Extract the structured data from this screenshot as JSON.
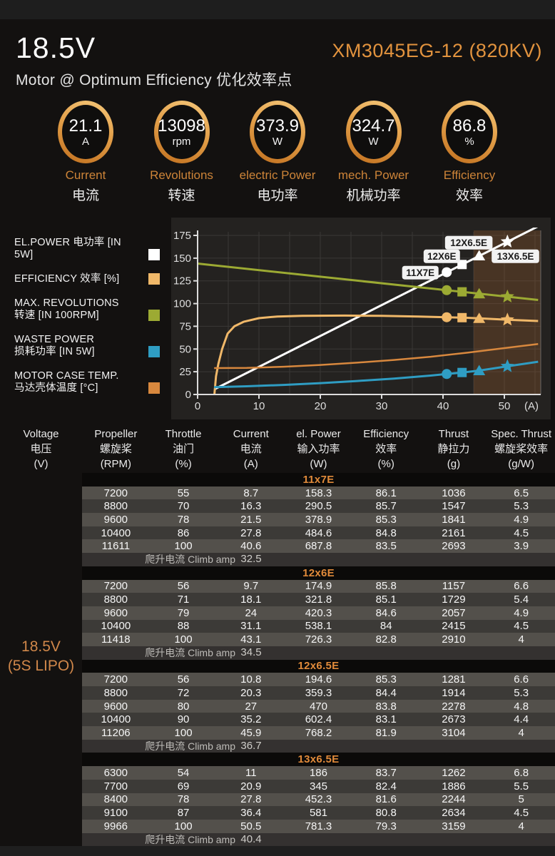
{
  "header": {
    "voltage": "18.5V",
    "model": "XM3045EG-12 (820KV)",
    "subtitle": "Motor @ Optimum Efficiency  优化效率点"
  },
  "gauges": [
    {
      "id": "current",
      "value": "21.1",
      "unit": "A",
      "label_en": "Current",
      "label_zh": "电流"
    },
    {
      "id": "revolutions",
      "value": "13098",
      "unit": "rpm",
      "label_en": "Revolutions",
      "label_zh": "转速"
    },
    {
      "id": "electric-power",
      "value": "373.9",
      "unit": "W",
      "label_en": "electric Power",
      "label_zh": "电功率"
    },
    {
      "id": "mech-power",
      "value": "324.7",
      "unit": "W",
      "label_en": "mech. Power",
      "label_zh": "机械功率"
    },
    {
      "id": "efficiency",
      "value": "86.8",
      "unit": "%",
      "label_en": "Efficiency",
      "label_zh": "效率"
    }
  ],
  "legend": [
    {
      "lines": [
        "EL.POWER 电功率 [IN 5W]"
      ],
      "color": "#ffffff"
    },
    {
      "lines": [
        "EFFICIENCY 效率 [%]"
      ],
      "color": "#f0b869"
    },
    {
      "lines": [
        "MAX. REVOLUTIONS",
        "转速 [IN 100RPM]"
      ],
      "color": "#9caa33"
    },
    {
      "lines": [
        "WASTE POWER",
        "损耗功率 [IN 5W]"
      ],
      "color": "#2f9dc3"
    },
    {
      "lines": [
        "MOTOR CASE TEMP.",
        "马达壳体温度 [°C]"
      ],
      "color": "#d8883e"
    }
  ],
  "chart_data": {
    "type": "line",
    "xlabel": "(A)",
    "xlim": [
      0,
      55.5
    ],
    "ylim": [
      0,
      180
    ],
    "x_ticks": [
      0,
      10,
      20,
      30,
      40,
      50
    ],
    "y_ticks": [
      0,
      25,
      50,
      75,
      100,
      125,
      150,
      175
    ],
    "grid": "on",
    "highlight_x_range": [
      45,
      55.5
    ],
    "highlight_color": "rgba(150,90,48,0.32)",
    "series": [
      {
        "key": "el_power",
        "name": "EL.POWER [IN 5W]",
        "color": "#ffffff",
        "width": 3,
        "points": [
          [
            2.8,
            6
          ],
          [
            55.5,
            185
          ]
        ]
      },
      {
        "key": "revolutions",
        "name": "MAX. REVOLUTIONS [IN 100RPM]",
        "color": "#9caa33",
        "width": 3,
        "points": [
          [
            0,
            144
          ],
          [
            55.5,
            104
          ]
        ]
      },
      {
        "key": "efficiency",
        "name": "EFFICIENCY [%]",
        "color": "#f0b869",
        "width": 3,
        "points": [
          [
            2.7,
            -3
          ],
          [
            3,
            20
          ],
          [
            3.4,
            34
          ],
          [
            4,
            50
          ],
          [
            4.9,
            67
          ],
          [
            6,
            75
          ],
          [
            7.5,
            80
          ],
          [
            10,
            84
          ],
          [
            13,
            85.8
          ],
          [
            17,
            86.5
          ],
          [
            24,
            86.8
          ],
          [
            30,
            86.5
          ],
          [
            36,
            85.8
          ],
          [
            40.6,
            85
          ],
          [
            43.1,
            84.5
          ],
          [
            45.9,
            83.8
          ],
          [
            50.5,
            82.2
          ],
          [
            55.5,
            80.8
          ]
        ]
      },
      {
        "key": "waste_power",
        "name": "WASTE POWER [IN 5W]",
        "color": "#2f9dc3",
        "width": 3,
        "points": [
          [
            2.7,
            8
          ],
          [
            8,
            9
          ],
          [
            14,
            10.5
          ],
          [
            20,
            12.5
          ],
          [
            26,
            14.8
          ],
          [
            32,
            17.5
          ],
          [
            38,
            20.8
          ],
          [
            40.6,
            22.5
          ],
          [
            43.1,
            24.2
          ],
          [
            45.9,
            26.3
          ],
          [
            50.5,
            31
          ],
          [
            55.5,
            36
          ]
        ]
      },
      {
        "key": "case_temp",
        "name": "MOTOR CASE TEMP. [°C]",
        "color": "#d8883e",
        "width": 2.5,
        "points": [
          [
            2.7,
            29
          ],
          [
            8,
            29.3
          ],
          [
            14,
            30.5
          ],
          [
            20,
            32.5
          ],
          [
            26,
            35
          ],
          [
            32,
            38
          ],
          [
            38,
            41.5
          ],
          [
            44,
            46
          ],
          [
            50,
            51
          ],
          [
            55.5,
            55.5
          ]
        ]
      }
    ],
    "markers": [
      {
        "prop": "11X7E",
        "shape": "circle",
        "pts": {
          "el_power": [
            40.6,
            134.5
          ],
          "revolutions": [
            40.6,
            114.7
          ],
          "efficiency": [
            40.6,
            85
          ],
          "waste_power": [
            40.6,
            22.5
          ]
        }
      },
      {
        "prop": "12X6E",
        "shape": "square",
        "pts": {
          "el_power": [
            43.1,
            143
          ],
          "revolutions": [
            43.1,
            112.9
          ],
          "efficiency": [
            43.1,
            84.5
          ],
          "waste_power": [
            43.1,
            24.2
          ]
        }
      },
      {
        "prop": "12X6.5E",
        "shape": "triangle",
        "pts": {
          "el_power": [
            45.9,
            152.6
          ],
          "revolutions": [
            45.9,
            110.9
          ],
          "efficiency": [
            45.9,
            83.8
          ],
          "waste_power": [
            45.9,
            26.3
          ]
        }
      },
      {
        "prop": "13X6.5E",
        "shape": "star",
        "pts": {
          "el_power": [
            50.5,
            168
          ],
          "revolutions": [
            50.5,
            107.6
          ],
          "efficiency": [
            50.5,
            82.2
          ],
          "waste_power": [
            50.5,
            31
          ]
        }
      }
    ],
    "marker_labels": [
      {
        "text": "11X7E",
        "x": 36.3,
        "y": 134
      },
      {
        "text": "12X6E",
        "x": 39.8,
        "y": 152
      },
      {
        "text": "12X6.5E",
        "x": 44.2,
        "y": 167
      },
      {
        "text": "13X6.5E",
        "x": 51.8,
        "y": 152
      }
    ]
  },
  "table": {
    "voltage_label_1": "18.5V",
    "voltage_label_2": "(5S LIPO)",
    "columns": [
      {
        "en": "Voltage",
        "zh": "电压",
        "unit": "(V)"
      },
      {
        "en": "Propeller",
        "zh": "螺旋桨",
        "unit": "(RPM)"
      },
      {
        "en": "Throttle",
        "zh": "油门",
        "unit": "(%)"
      },
      {
        "en": "Current",
        "zh": "电流",
        "unit": "(A)"
      },
      {
        "en": "el. Power",
        "zh": "输入功率",
        "unit": "(W)"
      },
      {
        "en": "Efficiency",
        "zh": "效率",
        "unit": "(%)"
      },
      {
        "en": "Thrust",
        "zh": "静拉力",
        "unit": "(g)"
      },
      {
        "en": "Spec. Thrust",
        "zh": "螺旋桨效率",
        "unit": "(g/W)"
      }
    ],
    "climb_label": "爬升电流 Climb amp",
    "sections": [
      {
        "name": "11x7E",
        "climb_value": "32.5",
        "rows": [
          [
            "7200",
            "55",
            "8.7",
            "158.3",
            "86.1",
            "1036",
            "6.5"
          ],
          [
            "8800",
            "70",
            "16.3",
            "290.5",
            "85.7",
            "1547",
            "5.3"
          ],
          [
            "9600",
            "78",
            "21.5",
            "378.9",
            "85.3",
            "1841",
            "4.9"
          ],
          [
            "10400",
            "86",
            "27.8",
            "484.6",
            "84.8",
            "2161",
            "4.5"
          ],
          [
            "11611",
            "100",
            "40.6",
            "687.8",
            "83.5",
            "2693",
            "3.9"
          ]
        ]
      },
      {
        "name": "12x6E",
        "climb_value": "34.5",
        "rows": [
          [
            "7200",
            "56",
            "9.7",
            "174.9",
            "85.8",
            "1157",
            "6.6"
          ],
          [
            "8800",
            "71",
            "18.1",
            "321.8",
            "85.1",
            "1729",
            "5.4"
          ],
          [
            "9600",
            "79",
            "24",
            "420.3",
            "84.6",
            "2057",
            "4.9"
          ],
          [
            "10400",
            "88",
            "31.1",
            "538.1",
            "84",
            "2415",
            "4.5"
          ],
          [
            "11418",
            "100",
            "43.1",
            "726.3",
            "82.8",
            "2910",
            "4"
          ]
        ]
      },
      {
        "name": "12x6.5E",
        "climb_value": "36.7",
        "rows": [
          [
            "7200",
            "56",
            "10.8",
            "194.6",
            "85.3",
            "1281",
            "6.6"
          ],
          [
            "8800",
            "72",
            "20.3",
            "359.3",
            "84.4",
            "1914",
            "5.3"
          ],
          [
            "9600",
            "80",
            "27",
            "470",
            "83.8",
            "2278",
            "4.8"
          ],
          [
            "10400",
            "90",
            "35.2",
            "602.4",
            "83.1",
            "2673",
            "4.4"
          ],
          [
            "11206",
            "100",
            "45.9",
            "768.2",
            "81.9",
            "3104",
            "4"
          ]
        ]
      },
      {
        "name": "13x6.5E",
        "climb_value": "40.4",
        "rows": [
          [
            "6300",
            "54",
            "11",
            "186",
            "83.7",
            "1262",
            "6.8"
          ],
          [
            "7700",
            "69",
            "20.9",
            "345",
            "82.4",
            "1886",
            "5.5"
          ],
          [
            "8400",
            "78",
            "27.8",
            "452.3",
            "81.6",
            "2244",
            "5"
          ],
          [
            "9100",
            "87",
            "36.4",
            "581",
            "80.8",
            "2634",
            "4.5"
          ],
          [
            "9966",
            "100",
            "50.5",
            "781.3",
            "79.3",
            "3159",
            "4"
          ]
        ]
      }
    ]
  }
}
